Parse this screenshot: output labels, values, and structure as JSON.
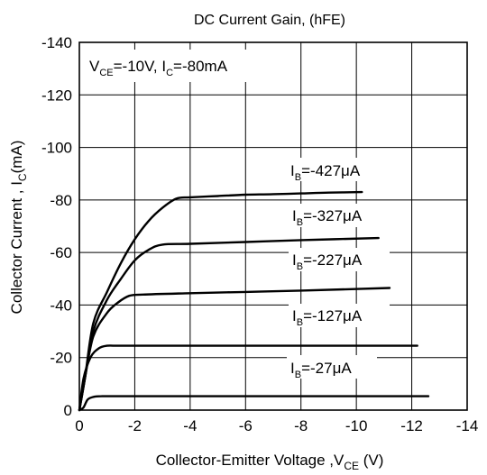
{
  "chart_data": {
    "type": "line",
    "title": "DC Current Gain, (hFE)",
    "xlabel": "Collector-Emitter Voltage ,V",
    "xlabel_sub": "CE",
    "xlabel_unit": " (V)",
    "ylabel": "Collector Current , I",
    "ylabel_sub": "C",
    "ylabel_unit": "(mA)",
    "xlim": [
      0,
      -14
    ],
    "ylim": [
      0,
      -140
    ],
    "x_ticks": [
      0,
      -2,
      -4,
      -6,
      -8,
      -10,
      -12,
      -14
    ],
    "x_tick_labels": [
      "0",
      "-2",
      "-4",
      "-6",
      "-8",
      "-10",
      "-12",
      "-14"
    ],
    "y_ticks": [
      0,
      -20,
      -40,
      -60,
      -80,
      -100,
      -120,
      -140
    ],
    "y_tick_labels": [
      "0",
      "-20",
      "-40",
      "-60",
      "-80",
      "-100",
      "-120",
      "-140"
    ],
    "grid": true,
    "condition": {
      "text_v": "V",
      "text_v_sub": "CE",
      "text_v_val": "=-10V, I",
      "text_i_sub": "C",
      "text_i_val": "=-80mA"
    },
    "series": [
      {
        "name": "IB=-427μA",
        "label_prefix": "I",
        "label_sub": "B",
        "label_val": "=-427μA",
        "x": [
          -0.2,
          -0.5,
          -1.0,
          -1.5,
          -2.0,
          -2.5,
          -3.0,
          -3.5,
          -4.0,
          -5.0,
          -6.0,
          -7.0,
          -8.0,
          -9.0,
          -10.2
        ],
        "y": [
          -12,
          -33,
          -45,
          -56,
          -65,
          -72,
          -77,
          -80.5,
          -81,
          -81.5,
          -82,
          -82.2,
          -82.5,
          -82.8,
          -83
        ]
      },
      {
        "name": "IB=-327μA",
        "label_prefix": "I",
        "label_sub": "B",
        "label_val": "=-327μA",
        "x": [
          -0.2,
          -0.5,
          -1.0,
          -1.5,
          -2.0,
          -2.5,
          -3.0,
          -4.0,
          -6.0,
          -8.0,
          -10.8
        ],
        "y": [
          -12,
          -30,
          -42,
          -50,
          -57,
          -61,
          -63,
          -63.3,
          -64,
          -64.7,
          -65.5
        ]
      },
      {
        "name": "IB=-227μA",
        "label_prefix": "I",
        "label_sub": "B",
        "label_val": "=-227μA",
        "x": [
          -0.2,
          -0.5,
          -1.0,
          -1.4,
          -1.8,
          -2.3,
          -4.0,
          -6.0,
          -8.0,
          -11.2
        ],
        "y": [
          -12,
          -28,
          -37,
          -41,
          -43.5,
          -44,
          -44.5,
          -45,
          -45.5,
          -46.5
        ]
      },
      {
        "name": "IB=-127μA",
        "label_prefix": "I",
        "label_sub": "B",
        "label_val": "=-127μA",
        "x": [
          -0.15,
          -0.4,
          -0.7,
          -1.0,
          -1.4,
          -3.0,
          -6.0,
          -9.0,
          -12.2
        ],
        "y": [
          -12,
          -20,
          -23.5,
          -24.5,
          -24.5,
          -24.5,
          -24.5,
          -24.5,
          -24.5
        ]
      },
      {
        "name": "IB=-27μA",
        "label_prefix": "I",
        "label_sub": "B",
        "label_val": "=-27μA",
        "x": [
          -0.15,
          -0.3,
          -0.5,
          -0.8,
          -1.2,
          -3.0,
          -6.0,
          -9.0,
          -12.6
        ],
        "y": [
          -1,
          -4,
          -5,
          -5.3,
          -5.3,
          -5.3,
          -5.3,
          -5.3,
          -5.3
        ]
      }
    ]
  }
}
